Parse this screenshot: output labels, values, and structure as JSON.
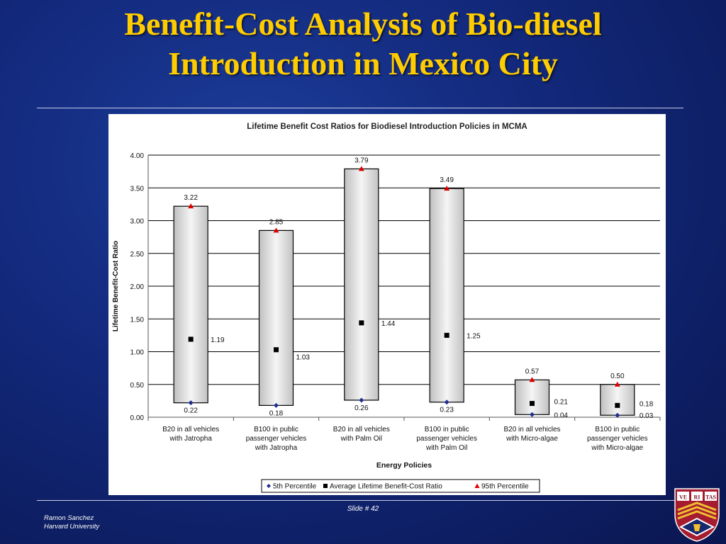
{
  "slide": {
    "title_line1": "Benefit-Cost Analysis of  Bio-diesel",
    "title_line2": "Introduction in Mexico City",
    "slide_number": "Slide # 42",
    "author": "Ramon Sanchez",
    "institution": "Harvard University",
    "crest_text": [
      "VE",
      "RI",
      "TAS"
    ]
  },
  "chart_data": {
    "type": "bar",
    "title": "Lifetime Benefit Cost Ratios for Biodiesel Introduction Policies in MCMA",
    "xlabel": "Energy Policies",
    "ylabel": "Lifetime Benefit-Cost Ratio",
    "ylim": [
      0,
      4
    ],
    "yticks": [
      "0.00",
      "0.50",
      "1.00",
      "1.50",
      "2.00",
      "2.50",
      "3.00",
      "3.50",
      "4.00"
    ],
    "grid": true,
    "legend_position": "bottom",
    "categories": [
      [
        "B20 in all vehicles",
        "with Jatropha"
      ],
      [
        "B100 in public",
        "passenger vehicles",
        "with Jatropha"
      ],
      [
        "B20 in all vehicles",
        "with Palm Oil"
      ],
      [
        "B100 in public",
        "passenger vehicles",
        "with Palm Oil"
      ],
      [
        "B20 in all vehicles",
        "with Micro-algae"
      ],
      [
        "B100 in public",
        "passenger vehicles",
        "with Micro-algae"
      ]
    ],
    "series": [
      {
        "name": "5th Percentile",
        "values": [
          0.22,
          0.18,
          0.26,
          0.23,
          0.04,
          0.03
        ],
        "labels": [
          "0.22",
          "0.18",
          "0.26",
          "0.23",
          "0.04",
          "0.03"
        ],
        "color": "#1f2f8f",
        "marker": "diamond"
      },
      {
        "name": "Average Lifetime Benefit-Cost Ratio",
        "values": [
          1.19,
          1.03,
          1.44,
          1.25,
          0.21,
          0.18
        ],
        "labels": [
          "1.19",
          "1.03",
          "1.44",
          "1.25",
          "0.21",
          "0.18"
        ],
        "color": "#000000",
        "marker": "square"
      },
      {
        "name": "95th Percentile",
        "values": [
          3.22,
          2.85,
          3.79,
          3.49,
          0.57,
          0.5
        ],
        "labels": [
          "3.22",
          "2.85",
          "3.79",
          "3.49",
          "0.57",
          "0.50"
        ],
        "color": "#e00000",
        "marker": "triangle"
      }
    ]
  }
}
